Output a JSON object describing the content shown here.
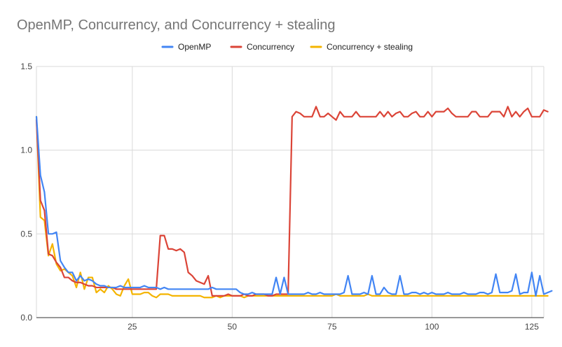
{
  "chart_data": {
    "type": "line",
    "title": "OpenMP, Concurrency, and Concurrency + stealing",
    "xlabel": "",
    "ylabel": "",
    "xlim": [
      1,
      128
    ],
    "ylim": [
      0,
      1.5
    ],
    "x_ticks": [
      25,
      50,
      75,
      100,
      125
    ],
    "x_tick_labels": [
      "25",
      "50",
      "75",
      "100",
      "125"
    ],
    "y_ticks": [
      0,
      0.5,
      1,
      1.5
    ],
    "y_tick_labels": [
      "0.0",
      "0.5",
      "1.0",
      "1.5"
    ],
    "grid": true,
    "legend_position": "top",
    "series": [
      {
        "name": "OpenMP",
        "color": "#4285f4",
        "values": [
          1.2,
          0.85,
          0.75,
          0.5,
          0.5,
          0.51,
          0.34,
          0.3,
          0.27,
          0.27,
          0.22,
          0.25,
          0.22,
          0.23,
          0.22,
          0.2,
          0.19,
          0.19,
          0.18,
          0.18,
          0.18,
          0.19,
          0.18,
          0.18,
          0.18,
          0.18,
          0.18,
          0.19,
          0.18,
          0.18,
          0.18,
          0.17,
          0.18,
          0.17,
          0.17,
          0.17,
          0.17,
          0.17,
          0.17,
          0.17,
          0.17,
          0.17,
          0.17,
          0.17,
          0.18,
          0.17,
          0.17,
          0.17,
          0.17,
          0.17,
          0.17,
          0.15,
          0.14,
          0.14,
          0.15,
          0.14,
          0.14,
          0.14,
          0.14,
          0.14,
          0.24,
          0.14,
          0.24,
          0.14,
          0.14,
          0.14,
          0.14,
          0.14,
          0.15,
          0.14,
          0.14,
          0.15,
          0.14,
          0.14,
          0.14,
          0.14,
          0.14,
          0.15,
          0.25,
          0.14,
          0.14,
          0.14,
          0.15,
          0.14,
          0.25,
          0.14,
          0.14,
          0.18,
          0.15,
          0.14,
          0.14,
          0.25,
          0.14,
          0.14,
          0.15,
          0.15,
          0.14,
          0.15,
          0.14,
          0.15,
          0.14,
          0.14,
          0.14,
          0.15,
          0.14,
          0.14,
          0.14,
          0.15,
          0.14,
          0.14,
          0.14,
          0.15,
          0.15,
          0.14,
          0.15,
          0.26,
          0.15,
          0.15,
          0.15,
          0.16,
          0.26,
          0.14,
          0.15,
          0.15,
          0.27,
          0.13,
          0.25,
          0.14,
          0.15,
          0.16
        ]
      },
      {
        "name": "Concurrency",
        "color": "#db4437",
        "values": [
          1.18,
          0.7,
          0.64,
          0.38,
          0.37,
          0.33,
          0.3,
          0.24,
          0.24,
          0.22,
          0.21,
          0.21,
          0.2,
          0.19,
          0.19,
          0.18,
          0.18,
          0.18,
          0.18,
          0.18,
          0.17,
          0.17,
          0.17,
          0.17,
          0.17,
          0.17,
          0.17,
          0.17,
          0.17,
          0.17,
          0.17,
          0.49,
          0.49,
          0.41,
          0.41,
          0.4,
          0.41,
          0.39,
          0.27,
          0.25,
          0.22,
          0.21,
          0.2,
          0.25,
          0.13,
          0.13,
          0.13,
          0.13,
          0.14,
          0.13,
          0.13,
          0.13,
          0.14,
          0.13,
          0.13,
          0.14,
          0.14,
          0.14,
          0.13,
          0.13,
          0.14,
          0.14,
          0.14,
          0.14,
          1.2,
          1.23,
          1.22,
          1.2,
          1.2,
          1.2,
          1.26,
          1.2,
          1.2,
          1.22,
          1.2,
          1.18,
          1.23,
          1.2,
          1.2,
          1.2,
          1.23,
          1.2,
          1.2,
          1.2,
          1.2,
          1.2,
          1.23,
          1.2,
          1.23,
          1.2,
          1.22,
          1.23,
          1.2,
          1.2,
          1.22,
          1.23,
          1.2,
          1.2,
          1.23,
          1.2,
          1.23,
          1.23,
          1.23,
          1.25,
          1.22,
          1.2,
          1.2,
          1.2,
          1.2,
          1.23,
          1.23,
          1.2,
          1.2,
          1.2,
          1.23,
          1.23,
          1.23,
          1.2,
          1.26,
          1.2,
          1.23,
          1.2,
          1.23,
          1.25,
          1.2,
          1.2,
          1.2,
          1.24,
          1.23
        ]
      },
      {
        "name": "Concurrency + stealing",
        "color": "#f4b400",
        "values": [
          1.2,
          0.6,
          0.58,
          0.37,
          0.44,
          0.32,
          0.28,
          0.29,
          0.27,
          0.25,
          0.18,
          0.27,
          0.17,
          0.24,
          0.24,
          0.15,
          0.17,
          0.15,
          0.19,
          0.17,
          0.14,
          0.13,
          0.19,
          0.23,
          0.14,
          0.14,
          0.14,
          0.15,
          0.15,
          0.13,
          0.12,
          0.14,
          0.14,
          0.14,
          0.13,
          0.13,
          0.13,
          0.13,
          0.13,
          0.13,
          0.13,
          0.13,
          0.12,
          0.12,
          0.12,
          0.13,
          0.12,
          0.13,
          0.13,
          0.13,
          0.13,
          0.13,
          0.12,
          0.13,
          0.13,
          0.13,
          0.13,
          0.13,
          0.13,
          0.13,
          0.13,
          0.13,
          0.13,
          0.13,
          0.13,
          0.13,
          0.13,
          0.13,
          0.13,
          0.13,
          0.13,
          0.13,
          0.13,
          0.13,
          0.13,
          0.14,
          0.13,
          0.13,
          0.13,
          0.13,
          0.13,
          0.13,
          0.13,
          0.14,
          0.13,
          0.13,
          0.13,
          0.13,
          0.13,
          0.13,
          0.13,
          0.13,
          0.13,
          0.13,
          0.13,
          0.13,
          0.13,
          0.13,
          0.13,
          0.13,
          0.13,
          0.13,
          0.13,
          0.13,
          0.13,
          0.13,
          0.13,
          0.13,
          0.13,
          0.13,
          0.13,
          0.13,
          0.13,
          0.13,
          0.13,
          0.13,
          0.13,
          0.13,
          0.13,
          0.13,
          0.13,
          0.13,
          0.13,
          0.13,
          0.13,
          0.13,
          0.13,
          0.13,
          0.13
        ]
      }
    ]
  }
}
